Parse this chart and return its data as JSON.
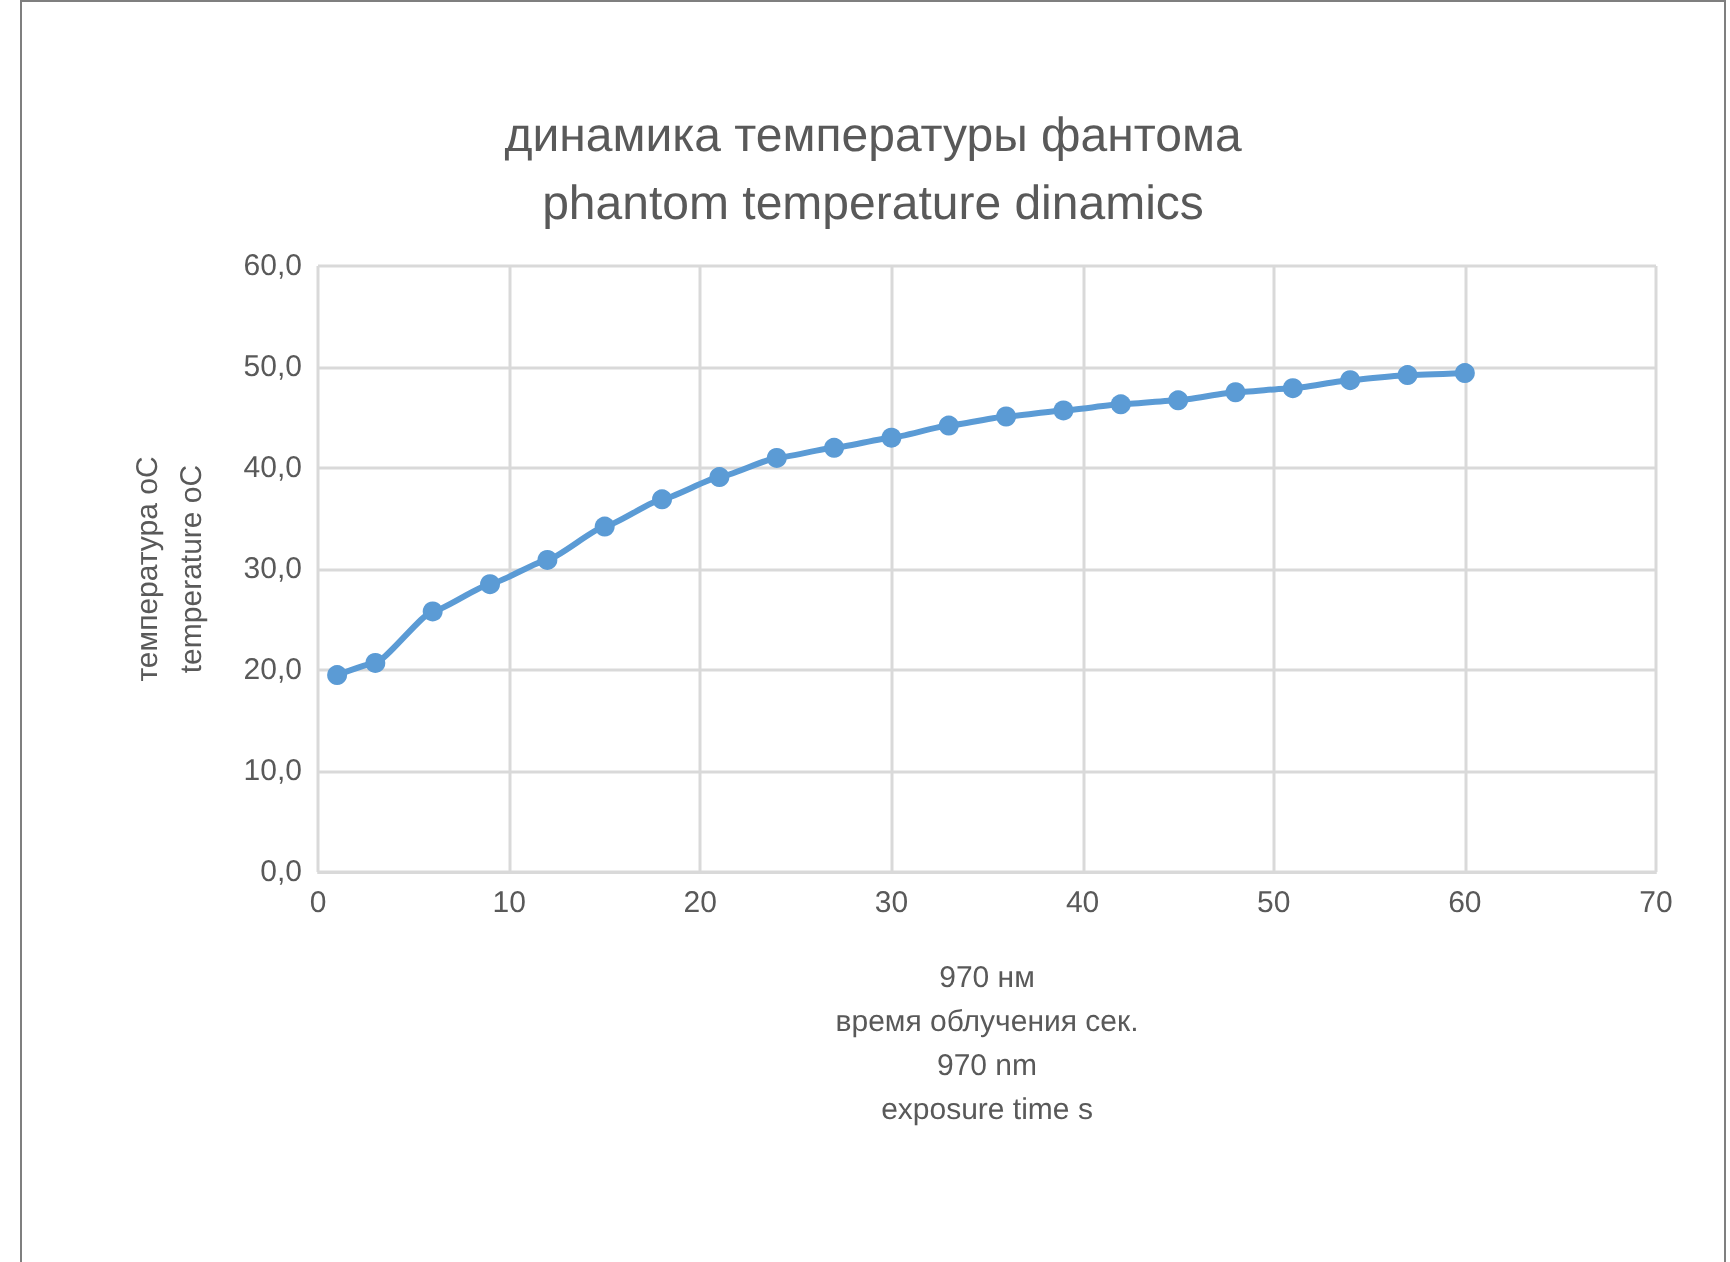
{
  "chart_data": {
    "type": "line",
    "title": "динамика температуры фантома\nphantom temperature dinamics",
    "xlabel": "970 нм\nвремя облучения сек.\n970 nm\nexposure time s",
    "ylabel": "температура оС\ntemperature oC",
    "x": [
      1,
      3,
      6,
      9,
      12,
      15,
      18,
      21,
      24,
      27,
      30,
      33,
      36,
      39,
      42,
      45,
      48,
      51,
      54,
      57,
      60
    ],
    "series": [
      {
        "color": "#5b9bd5",
        "values": [
          19.5,
          20.7,
          25.8,
          28.5,
          30.9,
          34.2,
          36.9,
          39.1,
          41.0,
          42.0,
          43.0,
          44.2,
          45.1,
          45.7,
          46.3,
          46.7,
          47.5,
          47.9,
          48.7,
          49.2,
          49.4
        ]
      }
    ],
    "xlim": [
      0,
      70
    ],
    "xticks": [
      0,
      10,
      20,
      30,
      40,
      50,
      60,
      70
    ],
    "ylim": [
      0,
      60
    ],
    "yticks": [
      {
        "value": 0,
        "label": "0,0"
      },
      {
        "value": 10,
        "label": "10,0"
      },
      {
        "value": 20,
        "label": "20,0"
      },
      {
        "value": 30,
        "label": "30,0"
      },
      {
        "value": 40,
        "label": "40,0"
      },
      {
        "value": 50,
        "label": "50,0"
      },
      {
        "value": 60,
        "label": "60,0"
      }
    ],
    "grid": true,
    "marker": "circle",
    "line_style": "solid"
  }
}
